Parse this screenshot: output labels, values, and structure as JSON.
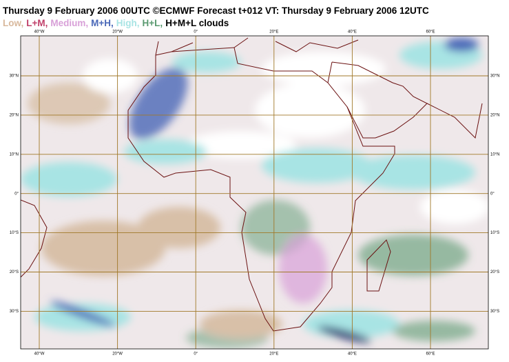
{
  "header": {
    "title": "Thursday 9 February 2006 00UTC ©ECMWF Forecast t+012 VT: Thursday 9 February 2006 12UTC"
  },
  "legend": [
    {
      "label": "Low,",
      "color": "#d8b89c"
    },
    {
      "label": "L+M,",
      "color": "#c0406a"
    },
    {
      "label": "Medium,",
      "color": "#d8a0d8"
    },
    {
      "label": "M+H,",
      "color": "#4a68b8"
    },
    {
      "label": "High,",
      "color": "#a8e4e4"
    },
    {
      "label": "H+L,",
      "color": "#5a9a70"
    },
    {
      "label": "H+M+L clouds",
      "color": "#000000"
    }
  ],
  "map": {
    "lon_labels": [
      "40°W",
      "20°W",
      "0°",
      "20°E",
      "40°E",
      "60°E"
    ],
    "lat_labels": [
      "30°N",
      "20°N",
      "10°N",
      "0°",
      "10°S",
      "20°S",
      "30°S"
    ]
  }
}
